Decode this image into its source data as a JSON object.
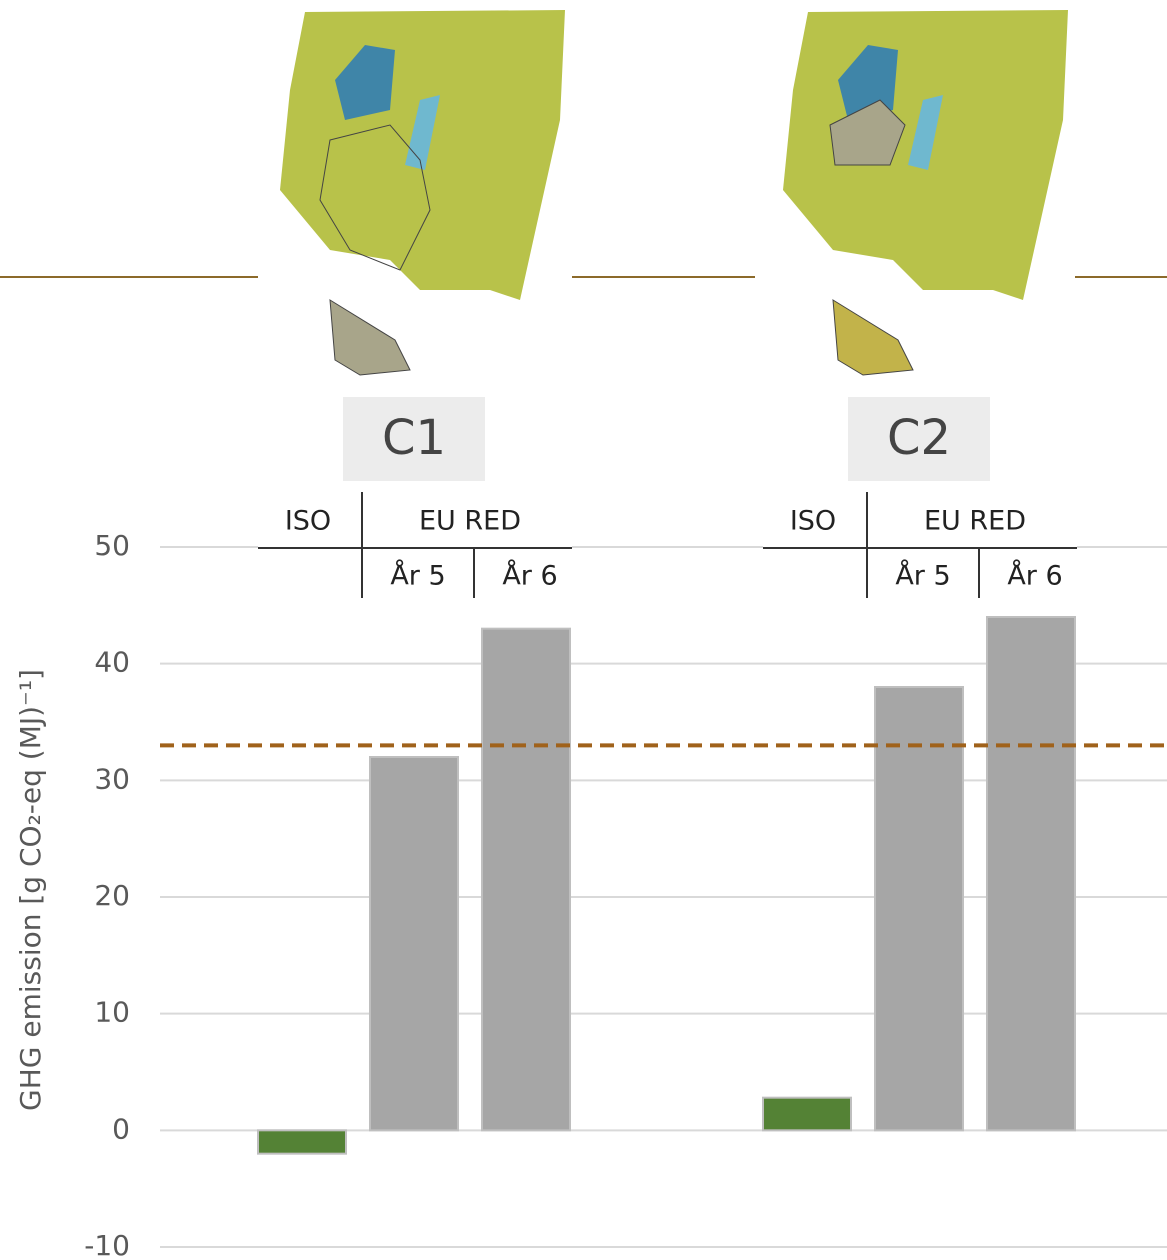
{
  "chart_data": {
    "type": "bar",
    "y_axis_label": "GHG emission [g CO₂-eq (MJ)⁻¹]",
    "categories": [
      "C1",
      "C2"
    ],
    "header_group": "EU RED",
    "series": [
      {
        "name": "ISO",
        "color": "#548235",
        "values": [
          -2,
          2.8
        ]
      },
      {
        "name": "År 5",
        "color": "#a6a6a6",
        "values": [
          32,
          38
        ]
      },
      {
        "name": "År 6",
        "color": "#a6a6a6",
        "values": [
          43,
          44
        ]
      }
    ],
    "reference_line": 33,
    "reference_color": "#a0621b",
    "ylim": [
      -10,
      50
    ],
    "yticks": [
      -10,
      0,
      10,
      20,
      30,
      40,
      50
    ],
    "grid": true
  }
}
